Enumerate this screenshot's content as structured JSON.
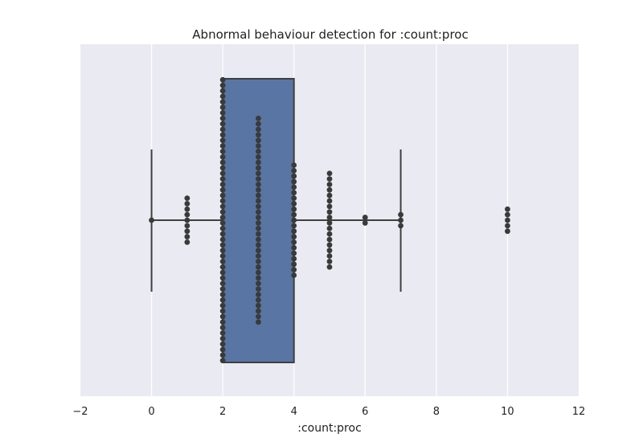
{
  "chart_data": {
    "type": "box-swarm",
    "title": "Abnormal behaviour detection for :count:proc",
    "xlabel": ":count:proc",
    "ylabel": "",
    "xlim": [
      -2,
      12
    ],
    "xticks": [
      -2,
      0,
      2,
      4,
      6,
      8,
      10,
      12
    ],
    "grid": true,
    "box": {
      "whisker_low": 0,
      "q1": 2,
      "median": 2,
      "q3": 4,
      "whisker_high": 7
    },
    "swarm": [
      {
        "x": 0,
        "count": 1
      },
      {
        "x": 1,
        "count": 9
      },
      {
        "x": 2,
        "count": 52
      },
      {
        "x": 3,
        "count": 38
      },
      {
        "x": 4,
        "count": 21
      },
      {
        "x": 5,
        "count": 18
      },
      {
        "x": 6,
        "count": 2
      },
      {
        "x": 7,
        "count": 3
      },
      {
        "x": 10,
        "count": 5
      }
    ],
    "colors": {
      "background": "#eaeaf2",
      "box": "#5975a4",
      "line": "#3f3f3f",
      "point": "#3a3a3a",
      "grid": "#ffffff"
    }
  }
}
